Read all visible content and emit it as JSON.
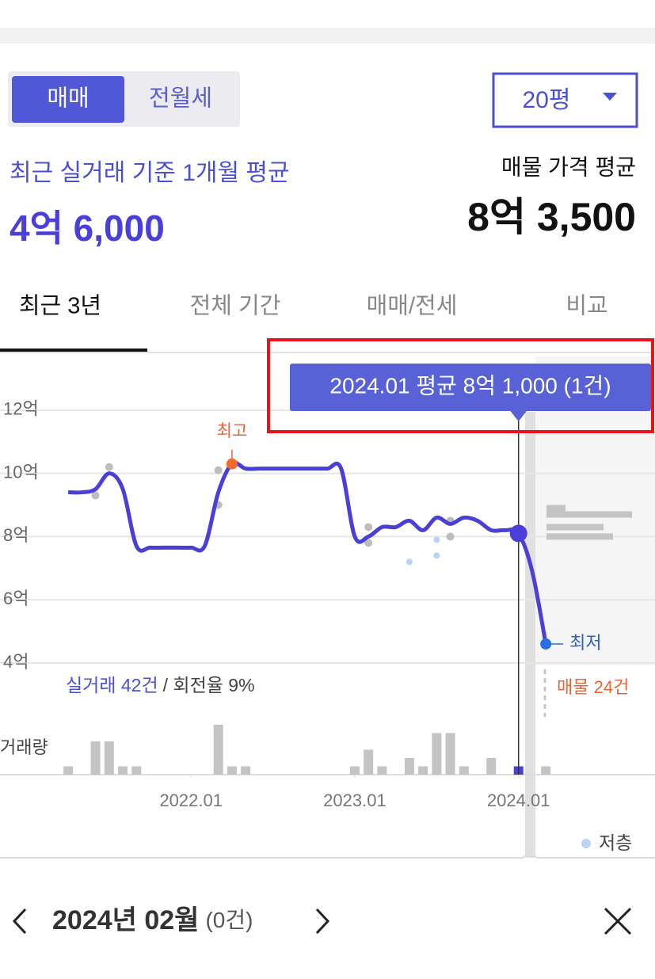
{
  "toggle": {
    "options": [
      "매매",
      "전월세"
    ]
  },
  "size_select": "20평",
  "recent": {
    "label": "최근 실거래 기준 1개월 평균",
    "value": "4억 6,000"
  },
  "listing": {
    "label": "매물 가격 평균",
    "value": "8억 3,500"
  },
  "tabs": [
    "최근 3년",
    "전체 기간",
    "매매/전세",
    "비교"
  ],
  "chart_data": {
    "type": "line",
    "tooltip": "2024.01 평균 8억 1,000 (1건)",
    "max_label": "최고",
    "min_label": "최저",
    "trade_count": "실거래 42건",
    "turnover": "/ 회전율 9%",
    "listing_count": "매물 24건",
    "volume_label": "거래량",
    "xlim": [
      "2020.11",
      "2024.11"
    ],
    "xticks": [
      "2022.01",
      "2023.01",
      "2024.01"
    ],
    "ylim": [
      4,
      13.7
    ],
    "yticks": [
      {
        "value": 4,
        "label": "4억"
      },
      {
        "value": 6,
        "label": "6억"
      },
      {
        "value": 8,
        "label": "8억"
      },
      {
        "value": 10,
        "label": "10억"
      },
      {
        "value": 12,
        "label": "12억"
      }
    ],
    "grid": true,
    "highlight": {
      "x": "2024.01",
      "color": "#4b3fd9"
    },
    "line": {
      "color": "#4b3fd9",
      "x": [
        "2021.04",
        "2021.05",
        "2021.06",
        "2021.07",
        "2021.08",
        "2021.09",
        "2021.10",
        "2021.11",
        "2021.12",
        "2022.01",
        "2022.02",
        "2022.03",
        "2022.04",
        "2022.05",
        "2022.06",
        "2022.07",
        "2022.08",
        "2022.09",
        "2022.10",
        "2022.11",
        "2022.12",
        "2023.01",
        "2023.02",
        "2023.03",
        "2023.04",
        "2023.05",
        "2023.06",
        "2023.07",
        "2023.08",
        "2023.09",
        "2023.10",
        "2023.11",
        "2023.12",
        "2024.01",
        "2024.02",
        "2024.03"
      ],
      "values": [
        9.4,
        9.4,
        9.5,
        10.0,
        9.5,
        7.7,
        7.65,
        7.65,
        7.65,
        7.65,
        7.7,
        9.4,
        10.3,
        10.15,
        10.15,
        10.15,
        10.15,
        10.15,
        10.15,
        10.15,
        10.15,
        8.0,
        8.0,
        8.3,
        8.3,
        8.5,
        8.2,
        8.6,
        8.4,
        8.6,
        8.5,
        8.2,
        8.2,
        8.1,
        6.9,
        4.6
      ]
    },
    "points": {
      "color": "#bdbdbd",
      "x": [
        "2021.06",
        "2021.07",
        "2022.03",
        "2022.03",
        "2023.02",
        "2023.02",
        "2023.08",
        "2023.08"
      ],
      "values": [
        9.3,
        10.2,
        10.1,
        9.0,
        8.3,
        7.8,
        8.5,
        8.0
      ]
    },
    "low_floor": {
      "name": "저층",
      "color": "#b9d3f2",
      "x": [
        "2023.05",
        "2023.07",
        "2023.07"
      ],
      "values": [
        7.2,
        7.4,
        7.9
      ]
    },
    "volume": {
      "color": "#c4c4c4",
      "ylim": [
        0,
        7
      ],
      "x": [
        "2021.04",
        "2021.06",
        "2021.07",
        "2021.08",
        "2021.09",
        "2022.03",
        "2022.04",
        "2022.05",
        "2023.01",
        "2023.02",
        "2023.03",
        "2023.05",
        "2023.06",
        "2023.07",
        "2023.08",
        "2023.09",
        "2023.11",
        "2024.01",
        "2024.03"
      ],
      "values": [
        1,
        4,
        4,
        1,
        1,
        6,
        1,
        1,
        1,
        3,
        1,
        2,
        1,
        5,
        5,
        1,
        2,
        1,
        1
      ]
    },
    "listings": {
      "color": "#c4c4c4",
      "prices": [
        8.9,
        8.7,
        8.3,
        8.0
      ],
      "counts": [
        2,
        9,
        6,
        7
      ]
    }
  },
  "footer": {
    "month": "2024년 02월",
    "count": "(0건)"
  }
}
